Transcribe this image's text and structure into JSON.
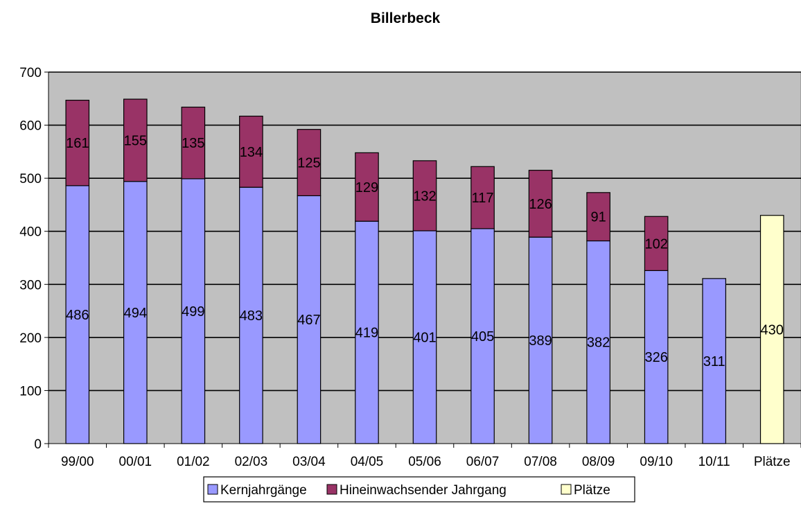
{
  "chart_data": {
    "type": "bar",
    "stacked": true,
    "title": "Billerbeck",
    "categories": [
      "99/00",
      "00/01",
      "01/02",
      "02/03",
      "03/04",
      "04/05",
      "05/06",
      "06/07",
      "07/08",
      "08/09",
      "09/10",
      "10/11",
      "Plätze"
    ],
    "series": [
      {
        "name": "Kernjahrgänge",
        "color": "#9999ff",
        "values": [
          486,
          494,
          499,
          483,
          467,
          419,
          401,
          405,
          389,
          382,
          326,
          311,
          null
        ]
      },
      {
        "name": "Hineinwachsender Jahrgang",
        "color": "#993366",
        "values": [
          161,
          155,
          135,
          134,
          125,
          129,
          132,
          117,
          126,
          91,
          102,
          null,
          null
        ]
      },
      {
        "name": "Plätze",
        "color": "#ffffcc",
        "values": [
          null,
          null,
          null,
          null,
          null,
          null,
          null,
          null,
          null,
          null,
          null,
          null,
          430
        ]
      }
    ],
    "ylim": [
      0,
      700
    ],
    "yticks": [
      0,
      100,
      200,
      300,
      400,
      500,
      600,
      700
    ],
    "plot_background": "#c0c0c0",
    "grid": true,
    "legend": "bottom"
  }
}
